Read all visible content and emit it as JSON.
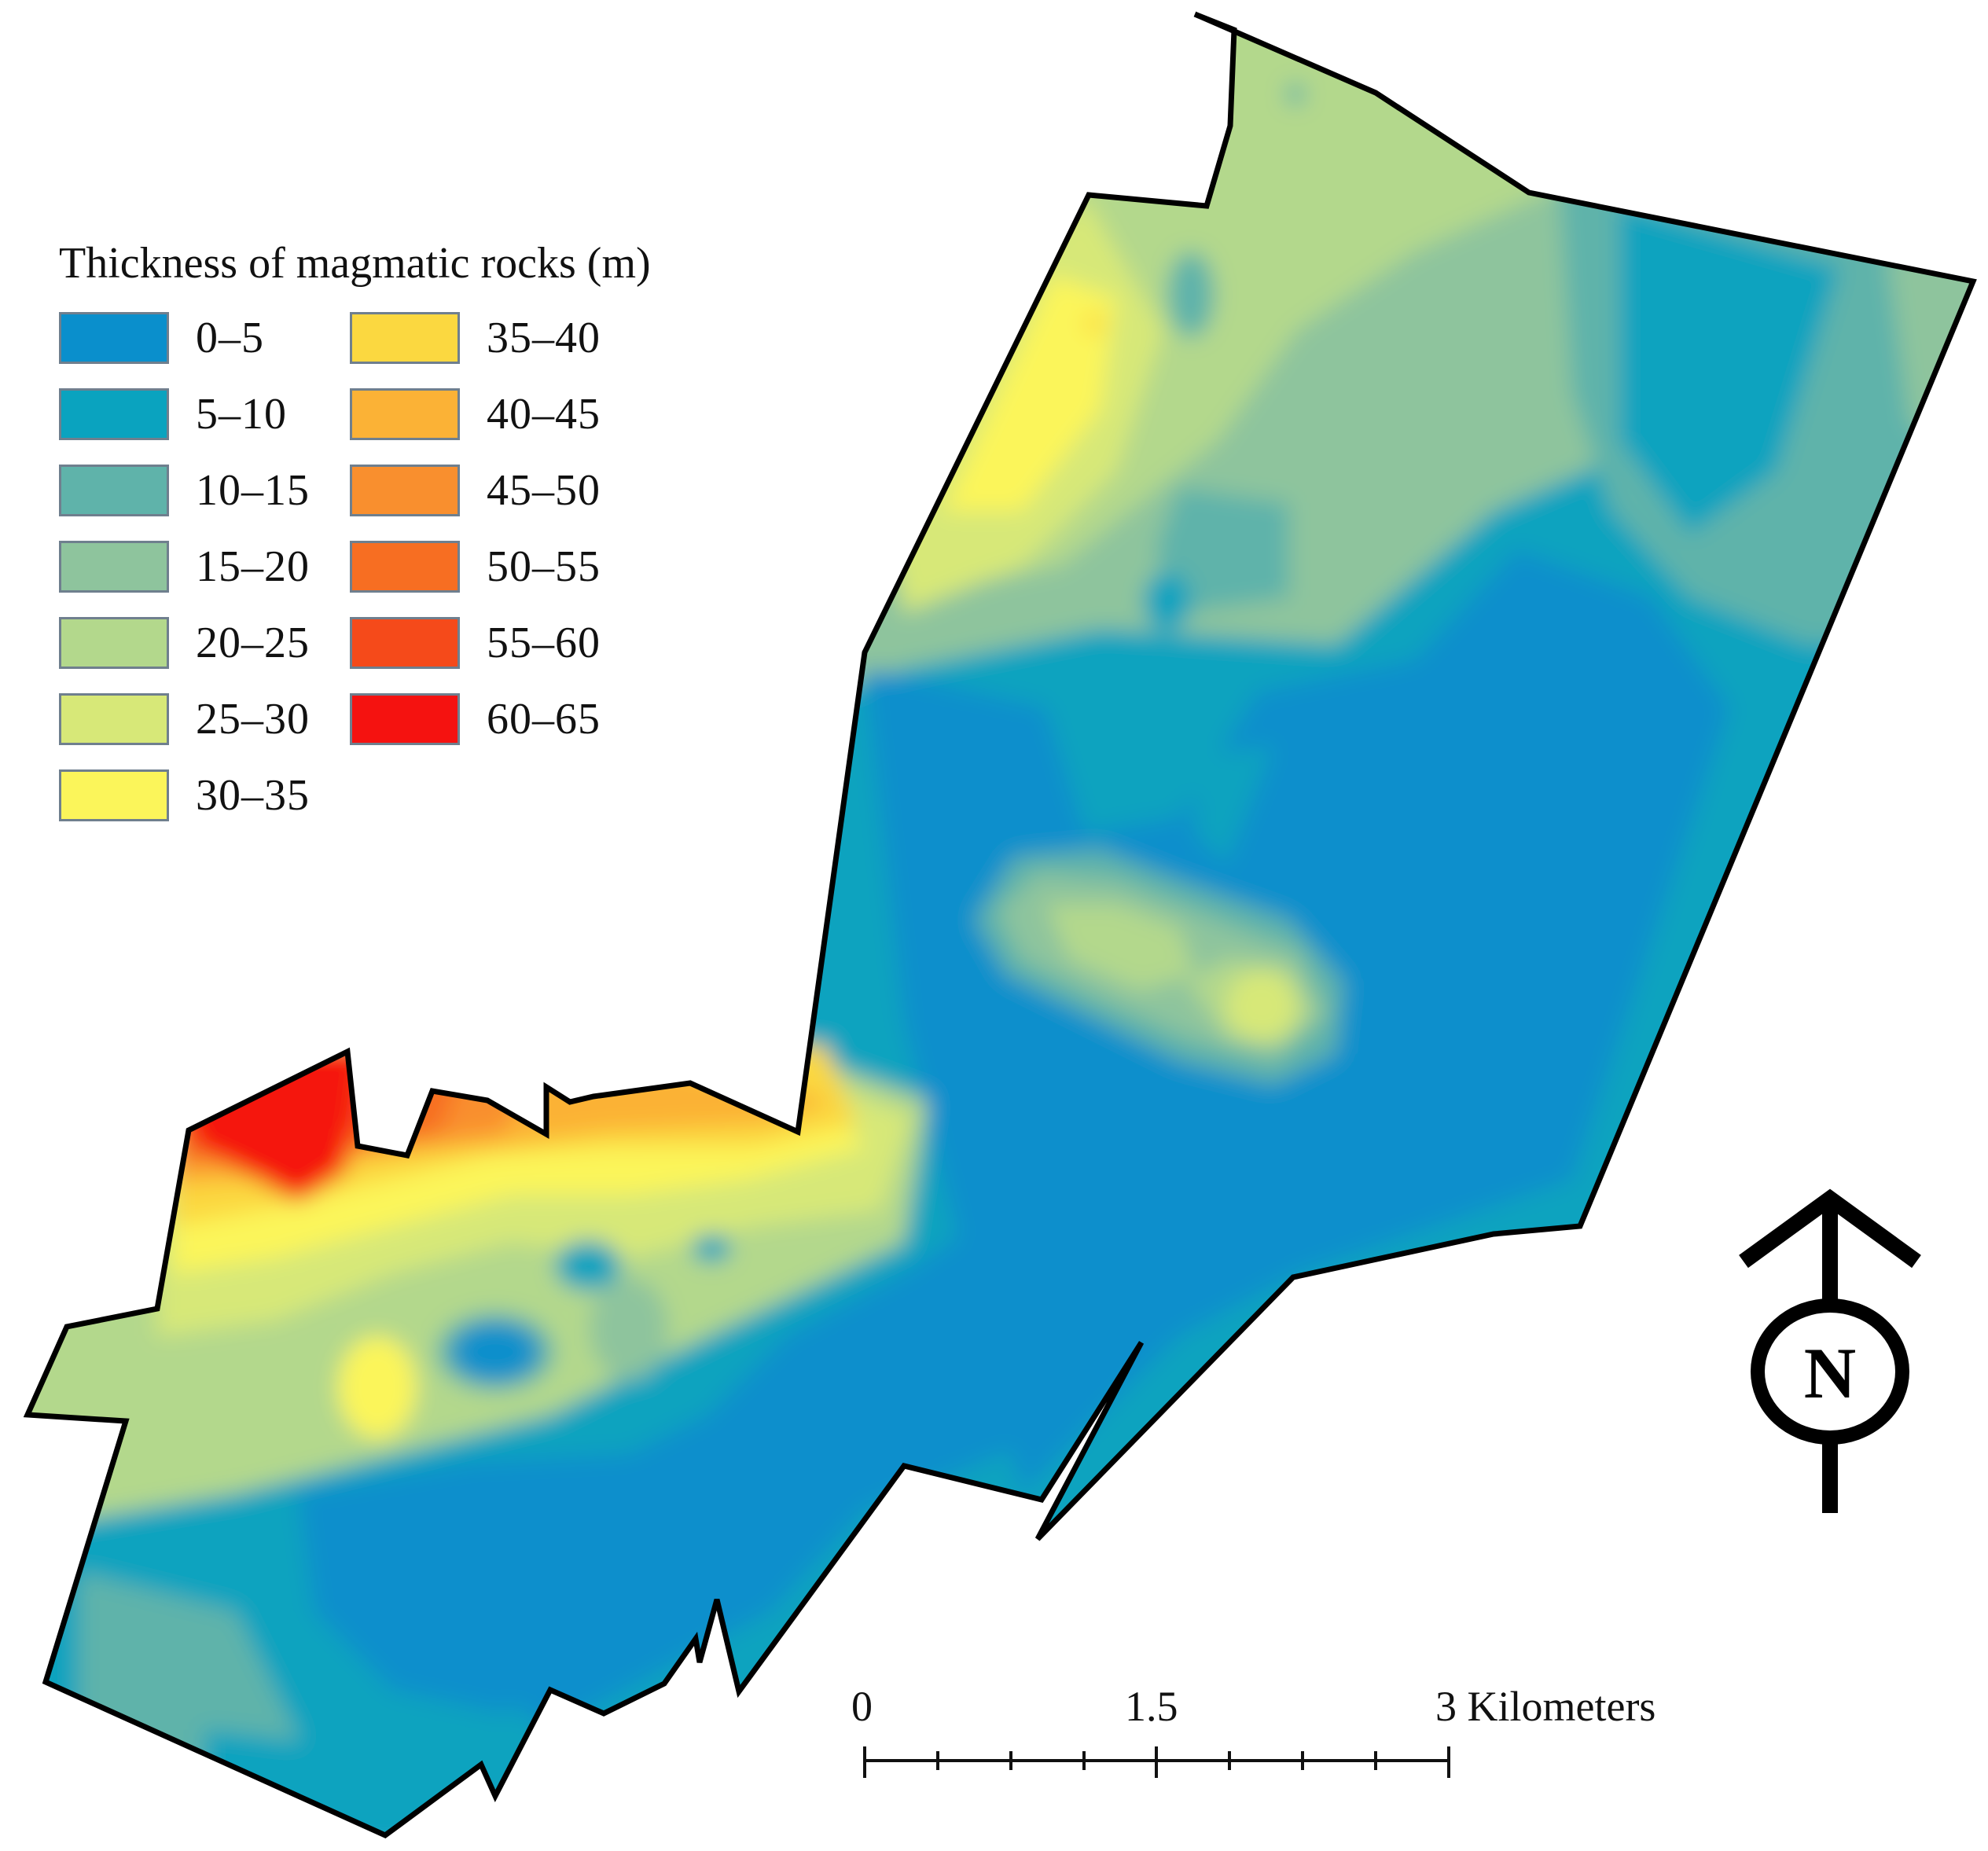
{
  "legend": {
    "title": "Thickness of magmatic rocks (m)",
    "classes": [
      {
        "label": "0–5",
        "color": "#0a8fcc"
      },
      {
        "label": "5–10",
        "color": "#0aa3bf"
      },
      {
        "label": "10–15",
        "color": "#5fb3aa"
      },
      {
        "label": "15–20",
        "color": "#8ec49d"
      },
      {
        "label": "20–25",
        "color": "#b3d88c"
      },
      {
        "label": "25–30",
        "color": "#d7e878"
      },
      {
        "label": "30–35",
        "color": "#fbf55a"
      },
      {
        "label": "35–40",
        "color": "#fbd840"
      },
      {
        "label": "40–45",
        "color": "#fbb236"
      },
      {
        "label": "45–50",
        "color": "#f98f2e"
      },
      {
        "label": "50–55",
        "color": "#f76e22"
      },
      {
        "label": "55–60",
        "color": "#f54a1a"
      },
      {
        "label": "60–65",
        "color": "#f51210"
      }
    ]
  },
  "scalebar": {
    "labels": [
      "0",
      "1.5",
      "3 Kilometers"
    ]
  },
  "north_arrow": {
    "letter": "N",
    "icon": "north-arrow-icon"
  }
}
